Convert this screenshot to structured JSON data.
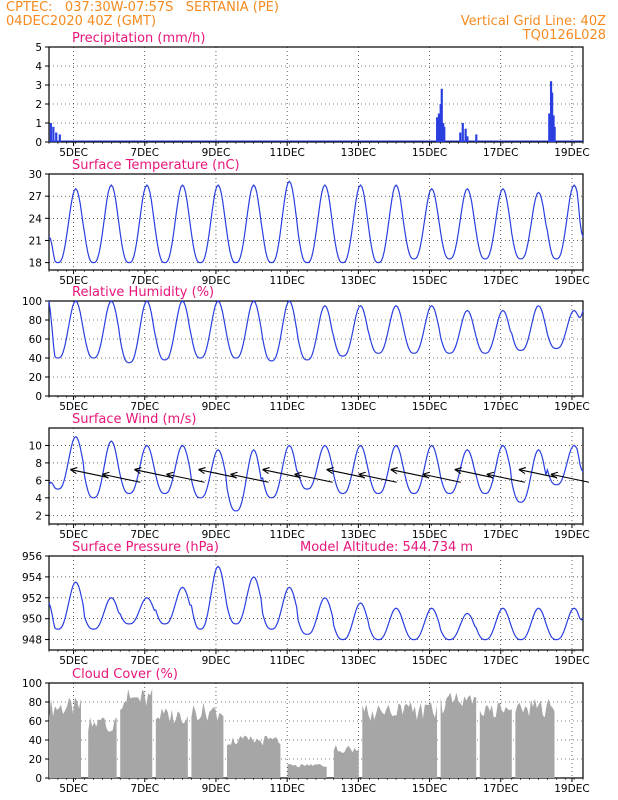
{
  "header": {
    "line1": "CPTEC:   037:30W-07:57S   SERTANIA (PE)",
    "line2": "04DEC2020 40Z (GMT)",
    "right1": "Vertical Grid Line: 40Z",
    "right2": "TQ0126L028"
  },
  "colors": {
    "header": "#f58a1f",
    "title": "#e8167a",
    "line": "#2a3fe0",
    "cloud": "#a6a6a6",
    "arrow": "#000000"
  },
  "x_ticks": [
    "5DEC",
    "7DEC",
    "9DEC",
    "11DEC",
    "13DEC",
    "15DEC",
    "17DEC",
    "19DEC"
  ],
  "chart_data": [
    {
      "type": "bar",
      "title": "Precipitation (mm/h)",
      "ylim": [
        0,
        5
      ],
      "yticks": [
        0,
        1,
        2,
        3,
        4,
        5
      ],
      "x_unit": "days since 04DEC2020 00Z",
      "bars": [
        [
          0.05,
          1.0
        ],
        [
          0.12,
          0.8
        ],
        [
          0.2,
          0.5
        ],
        [
          0.3,
          0.4
        ],
        [
          10.9,
          1.3
        ],
        [
          10.95,
          1.5
        ],
        [
          11.0,
          2.0
        ],
        [
          11.03,
          2.8
        ],
        [
          11.07,
          1.0
        ],
        [
          11.1,
          0.8
        ],
        [
          11.55,
          0.5
        ],
        [
          11.62,
          1.0
        ],
        [
          11.7,
          0.7
        ],
        [
          11.75,
          0.3
        ],
        [
          12.0,
          0.4
        ],
        [
          14.05,
          1.5
        ],
        [
          14.1,
          3.2
        ],
        [
          14.13,
          2.6
        ],
        [
          14.17,
          1.4
        ],
        [
          14.2,
          0.8
        ]
      ]
    },
    {
      "type": "line",
      "title": "Surface Temperature (nC)",
      "ylim": [
        17,
        30
      ],
      "yticks": [
        18,
        21,
        24,
        27,
        30
      ],
      "x_unit": "days since 04DEC2020 00Z",
      "daily_min": [
        18,
        18,
        18,
        18,
        18,
        18,
        18,
        18,
        18,
        18,
        18.5,
        18.5,
        18.5,
        18.5,
        18.5
      ],
      "daily_max": [
        28,
        28.5,
        28.5,
        28.5,
        28.5,
        28.5,
        29,
        28.5,
        28.5,
        28.5,
        28,
        28,
        28,
        27.5,
        28.5
      ],
      "start": 21.5,
      "end": 21.5
    },
    {
      "type": "line",
      "title": "Relative Humidity (%)",
      "ylim": [
        0,
        100
      ],
      "yticks": [
        0,
        20,
        40,
        60,
        80,
        100
      ],
      "x_unit": "days since 04DEC2020 00Z",
      "daily_min": [
        40,
        40,
        35,
        38,
        40,
        40,
        37,
        38,
        42,
        45,
        45,
        45,
        45,
        48,
        50
      ],
      "daily_max": [
        100,
        100,
        100,
        100,
        100,
        100,
        100,
        95,
        95,
        95,
        95,
        90,
        90,
        95,
        90
      ],
      "start": 100,
      "end": 90
    },
    {
      "type": "line",
      "title": "Surface Wind (m/s)",
      "ylim": [
        1,
        12
      ],
      "yticks": [
        2,
        4,
        6,
        8,
        10
      ],
      "x_unit": "days since 04DEC2020 00Z",
      "daily_min": [
        5,
        4,
        4.5,
        4.5,
        4,
        2.5,
        4,
        5,
        4.5,
        4.5,
        4.5,
        4.5,
        4.5,
        3.5,
        5.5
      ],
      "daily_max": [
        11,
        10.5,
        10,
        10,
        9.5,
        9.5,
        10,
        10,
        10,
        10,
        10,
        9.5,
        10,
        9.5,
        10
      ],
      "start": 5.5,
      "end": 7,
      "arrow_days": [
        0.6,
        1.5,
        2.4,
        3.3,
        4.2,
        5.1,
        6.0,
        6.9,
        7.8,
        8.7,
        9.6,
        10.5,
        11.4,
        12.3,
        13.2,
        14.1
      ]
    },
    {
      "type": "line",
      "title": "Surface Pressure (hPa)",
      "annotation": "Model Altitude: 544.734 m",
      "ylim": [
        947,
        956
      ],
      "yticks": [
        948,
        950,
        952,
        954,
        956
      ],
      "x_unit": "days since 04DEC2020 00Z",
      "daily_min": [
        949,
        949,
        949.5,
        949.5,
        949,
        949.5,
        949,
        948.5,
        948,
        948,
        948,
        948,
        948,
        948,
        948
      ],
      "daily_max": [
        953.5,
        952,
        952,
        953,
        955,
        954,
        953,
        952,
        951.5,
        951,
        951,
        950.5,
        951,
        951,
        951
      ],
      "start": 951.5,
      "end": 950
    },
    {
      "type": "area",
      "title": "Cloud Cover (%)",
      "ylim": [
        0,
        100
      ],
      "yticks": [
        0,
        20,
        40,
        60,
        80,
        100
      ],
      "x_unit": "days since 04DEC2020 00Z",
      "segments": [
        [
          0.0,
          0.9,
          85
        ],
        [
          1.1,
          1.9,
          65
        ],
        [
          2.0,
          2.9,
          95
        ],
        [
          3.0,
          3.9,
          75
        ],
        [
          4.0,
          4.9,
          80
        ],
        [
          5.0,
          6.5,
          45
        ],
        [
          6.7,
          7.8,
          15
        ],
        [
          8.0,
          8.7,
          35
        ],
        [
          8.8,
          10.9,
          80
        ],
        [
          11.0,
          12.0,
          90
        ],
        [
          12.1,
          13.0,
          80
        ],
        [
          13.1,
          14.2,
          85
        ]
      ]
    }
  ]
}
